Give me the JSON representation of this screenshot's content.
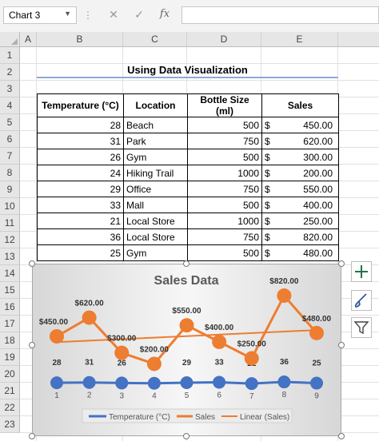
{
  "formula_bar": {
    "name_box": "Chart 3",
    "fx_label": "fx",
    "formula_value": ""
  },
  "columns": [
    "A",
    "B",
    "C",
    "D",
    "E"
  ],
  "rows": [
    "1",
    "2",
    "3",
    "4",
    "5",
    "6",
    "7",
    "8",
    "9",
    "10",
    "11",
    "12",
    "13",
    "14",
    "15",
    "16",
    "17",
    "18",
    "19",
    "20",
    "21",
    "22",
    "23"
  ],
  "sheet": {
    "title": "Using Data Visualization",
    "headers": [
      "Temperature (°C)",
      "Location",
      "Bottle Size (ml)",
      "Sales"
    ],
    "currency_symbol": "$",
    "records": [
      {
        "temp": "28",
        "location": "Beach",
        "size": "500",
        "sales": "450.00"
      },
      {
        "temp": "31",
        "location": "Park",
        "size": "750",
        "sales": "620.00"
      },
      {
        "temp": "26",
        "location": "Gym",
        "size": "500",
        "sales": "300.00"
      },
      {
        "temp": "24",
        "location": "Hiking Trail",
        "size": "1000",
        "sales": "200.00"
      },
      {
        "temp": "29",
        "location": "Office",
        "size": "750",
        "sales": "550.00"
      },
      {
        "temp": "33",
        "location": "Mall",
        "size": "500",
        "sales": "400.00"
      },
      {
        "temp": "21",
        "location": "Local Store",
        "size": "1000",
        "sales": "250.00"
      },
      {
        "temp": "36",
        "location": "Local Store",
        "size": "750",
        "sales": "820.00"
      },
      {
        "temp": "25",
        "location": "Gym",
        "size": "500",
        "sales": "480.00"
      }
    ]
  },
  "chart_data": {
    "type": "line",
    "title": "Sales Data",
    "categories": [
      1,
      2,
      3,
      4,
      5,
      6,
      7,
      8,
      9
    ],
    "series": [
      {
        "name": "Temperature (°C)",
        "values": [
          28,
          31,
          26,
          24,
          29,
          33,
          21,
          36,
          25
        ],
        "labels": [
          "28",
          "31",
          "26",
          "24",
          "29",
          "33",
          "21",
          "36",
          "25"
        ],
        "color": "#4472c4"
      },
      {
        "name": "Sales",
        "values": [
          450,
          620,
          300,
          200,
          550,
          400,
          250,
          820,
          480
        ],
        "labels": [
          "$450.00",
          "$620.00",
          "$300.00",
          "$200.00",
          "$550.00",
          "$400.00",
          "$250.00",
          "$820.00",
          "$480.00"
        ],
        "color": "#ed7d31"
      },
      {
        "name": "Linear (Sales)",
        "trendline": true,
        "of": "Sales",
        "color": "#ed7d31"
      }
    ],
    "ylim": [
      0,
      900
    ],
    "legend": "bottom",
    "grid": false
  },
  "colors": {
    "sales": "#ed7d31",
    "temperature": "#4472c4",
    "title_underline": "#8ea9d8",
    "add_element": "#217346"
  },
  "chart_buttons": [
    "plus-icon",
    "brush-icon",
    "filter-icon"
  ]
}
